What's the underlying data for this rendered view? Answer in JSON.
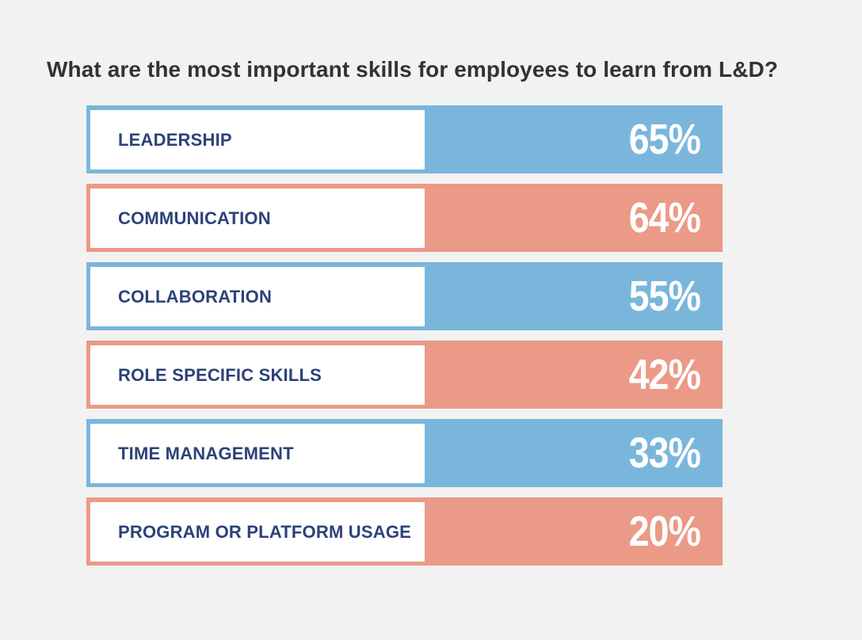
{
  "colors": {
    "blue": "#7ab6dc",
    "salmon": "#ea9a87",
    "label_text": "#2c4278",
    "title_text": "#333333",
    "background": "#f2f2f2"
  },
  "chart_data": {
    "type": "table",
    "title": "What are the most important skills for employees to learn from L&D?",
    "rows": [
      {
        "label": "LEADERSHIP",
        "value": 65,
        "display": "65%",
        "color": "#7ab6dc"
      },
      {
        "label": "COMMUNICATION",
        "value": 64,
        "display": "64%",
        "color": "#ea9a87"
      },
      {
        "label": "COLLABORATION",
        "value": 55,
        "display": "55%",
        "color": "#7ab6dc"
      },
      {
        "label": "ROLE SPECIFIC SKILLS",
        "value": 42,
        "display": "42%",
        "color": "#ea9a87"
      },
      {
        "label": "TIME MANAGEMENT",
        "value": 33,
        "display": "33%",
        "color": "#7ab6dc"
      },
      {
        "label": "PROGRAM OR PLATFORM USAGE",
        "value": 20,
        "display": "20%",
        "color": "#ea9a87"
      }
    ]
  }
}
